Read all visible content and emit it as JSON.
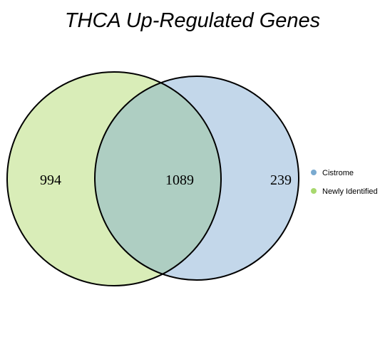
{
  "title": "THCA Up-Regulated Genes",
  "sets": [
    {
      "name": "Cistrome",
      "color": "#7aaad0",
      "fill": "#c3d7ea"
    },
    {
      "name": "Newly Identified",
      "color": "#a8d86e",
      "fill": "#d9edb8"
    }
  ],
  "overlap_fill": "#aecec2",
  "regions": {
    "newly_identified_only": "994",
    "intersection": "1089",
    "cistrome_only": "239"
  }
}
